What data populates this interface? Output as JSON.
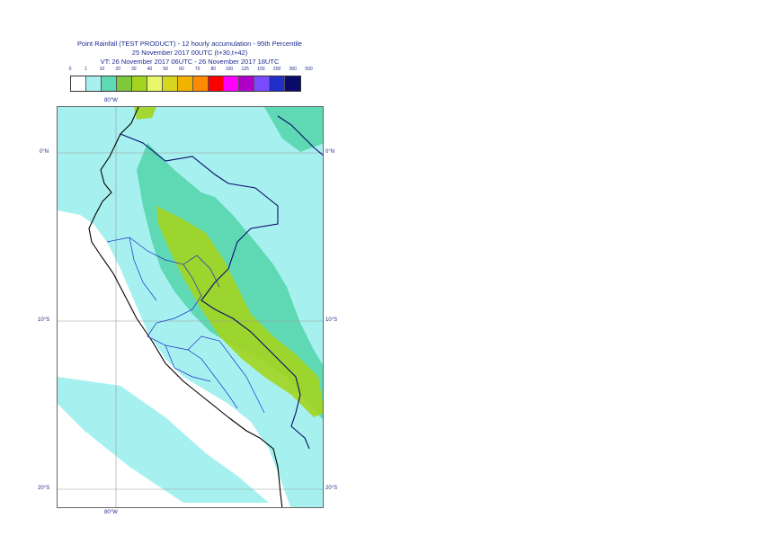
{
  "header": {
    "line1": "Point Rainfall (TEST PRODUCT) - 12 hourly accumulation - 95th Percentile",
    "line2": "25 November 2017 00UTC (t+30,t+42)",
    "line3": "VT: 26 November 2017 06UTC - 26 November 2017 18UTC"
  },
  "legend": {
    "thresholds": [
      "0",
      "1",
      "10",
      "20",
      "30",
      "40",
      "50",
      "60",
      "70",
      "80",
      "100",
      "125",
      "150",
      "200",
      "300",
      "500"
    ],
    "colors": [
      "#ffffff",
      "#a6f1f0",
      "#5fd9b4",
      "#7ec83c",
      "#a3d41e",
      "#e8f86a",
      "#d6d61e",
      "#f2b300",
      "#ff8c00",
      "#ff0000",
      "#ff00ff",
      "#b000c8",
      "#7a4bff",
      "#1f2fc8",
      "#0a0a6b"
    ]
  },
  "map": {
    "lon_labels": {
      "top": "80°W",
      "bottom": "80°W"
    },
    "lat_labels": [
      {
        "left": "0°N",
        "right": "0°N"
      },
      {
        "left": "10°S",
        "right": "10°S"
      },
      {
        "left": "20°S",
        "right": "20°S"
      }
    ],
    "colors": {
      "light_rain": "#a6f1f0",
      "moderate_rain": "#5fd9b4",
      "heavy_rain": "#a3d41e",
      "coast": "#000000",
      "borders": "#0a0a6b",
      "grid": "#9a9a9a"
    }
  }
}
